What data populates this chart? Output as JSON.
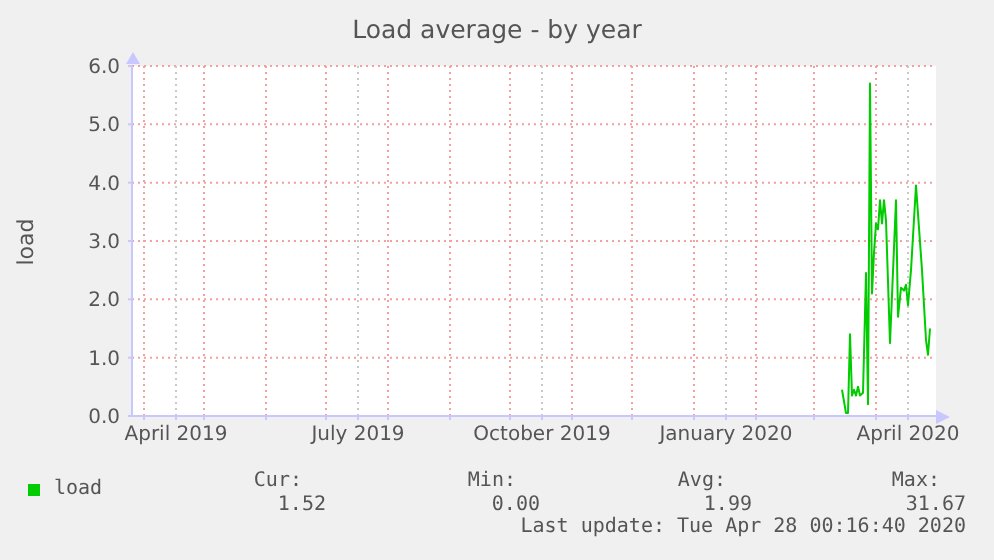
{
  "chart_data": {
    "type": "line",
    "title": "Load average - by year",
    "ylabel": "load",
    "xlim": [
      "2019-03-26",
      "2020-05-01"
    ],
    "xticks": [
      {
        "value": "2019-04-01",
        "label": null
      },
      {
        "value": "2019-04-17",
        "label": "April 2019"
      },
      {
        "value": "2019-05-01",
        "label": null
      },
      {
        "value": "2019-06-01",
        "label": null
      },
      {
        "value": "2019-07-01",
        "label": null
      },
      {
        "value": "2019-07-17",
        "label": "July 2019"
      },
      {
        "value": "2019-08-01",
        "label": null
      },
      {
        "value": "2019-09-01",
        "label": null
      },
      {
        "value": "2019-10-01",
        "label": null
      },
      {
        "value": "2019-10-17",
        "label": "October 2019"
      },
      {
        "value": "2019-11-01",
        "label": null
      },
      {
        "value": "2019-12-01",
        "label": null
      },
      {
        "value": "2020-01-01",
        "label": null
      },
      {
        "value": "2020-01-17",
        "label": "January 2020"
      },
      {
        "value": "2020-02-01",
        "label": null
      },
      {
        "value": "2020-03-01",
        "label": null
      },
      {
        "value": "2020-04-01",
        "label": null
      },
      {
        "value": "2020-04-17",
        "label": "April 2020"
      }
    ],
    "ylim": [
      0,
      6
    ],
    "yticks": [
      {
        "value": 0,
        "label": "0.0"
      },
      {
        "value": 1,
        "label": "1.0"
      },
      {
        "value": 2,
        "label": "2.0"
      },
      {
        "value": 3,
        "label": "3.0"
      },
      {
        "value": 4,
        "label": "4.0"
      },
      {
        "value": 5,
        "label": "5.0"
      },
      {
        "value": 6,
        "label": "6.0"
      }
    ],
    "grid": true,
    "legend": "bottom left",
    "series": [
      {
        "name": "load",
        "color": "#00cc00",
        "x": [
          "2020-03-15",
          "2020-03-17",
          "2020-03-18",
          "2020-03-19",
          "2020-03-20",
          "2020-03-21",
          "2020-03-22",
          "2020-03-23",
          "2020-03-24",
          "2020-03-25T12:00",
          "2020-03-27",
          "2020-03-28",
          "2020-03-29",
          "2020-03-30",
          "2020-03-31",
          "2020-04-01",
          "2020-04-02",
          "2020-04-03",
          "2020-04-04",
          "2020-04-05",
          "2020-04-06",
          "2020-04-08",
          "2020-04-11",
          "2020-04-12",
          "2020-04-13T12:00",
          "2020-04-15",
          "2020-04-16",
          "2020-04-17",
          "2020-04-18T12:00",
          "2020-04-21",
          "2020-04-24",
          "2020-04-26",
          "2020-04-27",
          "2020-04-28"
        ],
        "values": [
          0.45,
          0.05,
          0.05,
          1.4,
          0.35,
          0.45,
          0.35,
          0.5,
          0.35,
          0.4,
          2.45,
          0.2,
          5.7,
          2.1,
          2.8,
          3.3,
          3.2,
          3.7,
          3.3,
          3.7,
          3.35,
          1.25,
          3.7,
          1.7,
          2.2,
          2.15,
          2.25,
          1.9,
          2.5,
          3.95,
          2.5,
          1.3,
          1.05,
          1.5
        ]
      }
    ],
    "annotations": [
      "Cur:",
      "Min:",
      "Avg:",
      "Max:",
      "1.52",
      "0.00",
      "1.99",
      "31.67",
      "Last update: Tue Apr 28 00:16:40 2020"
    ]
  }
}
